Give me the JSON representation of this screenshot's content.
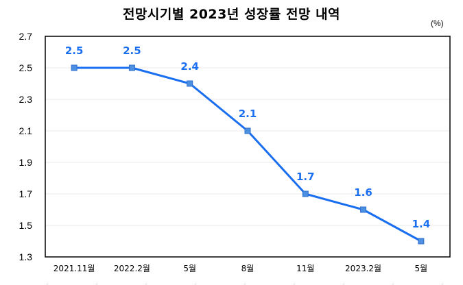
{
  "title": "전망시기별 2023년 성장률 전망 내역",
  "unit": "(%)",
  "colors": {
    "line": "#1a6ef0",
    "marker_fill": "#4d8fe0",
    "marker_stroke": "#2f6fcf",
    "label": "#1a6ef0",
    "grid": "#eaeaea",
    "axis": "#000000"
  },
  "chart_data": {
    "type": "line",
    "title": "전망시기별 2023년 성장률 전망 내역",
    "xlabel": "",
    "ylabel": "(%)",
    "categories": [
      "2021.11월",
      "2022.2월",
      "5월",
      "8월",
      "11월",
      "2023.2월",
      "5월"
    ],
    "series": [
      {
        "name": "2023년 성장률 전망",
        "values": [
          2.5,
          2.5,
          2.4,
          2.1,
          1.7,
          1.6,
          1.4
        ]
      }
    ],
    "data_labels": [
      "2.5",
      "2.5",
      "2.4",
      "2.1",
      "1.7",
      "1.6",
      "1.4"
    ],
    "ylim": [
      1.3,
      2.7
    ],
    "yticks": [
      1.3,
      1.5,
      1.7,
      1.9,
      2.1,
      2.3,
      2.5,
      2.7
    ],
    "ytick_labels": [
      "1.3",
      "1.5",
      "1.7",
      "1.9",
      "2.1",
      "2.3",
      "2.5",
      "2.7"
    ],
    "grid": true,
    "legend": "none"
  }
}
